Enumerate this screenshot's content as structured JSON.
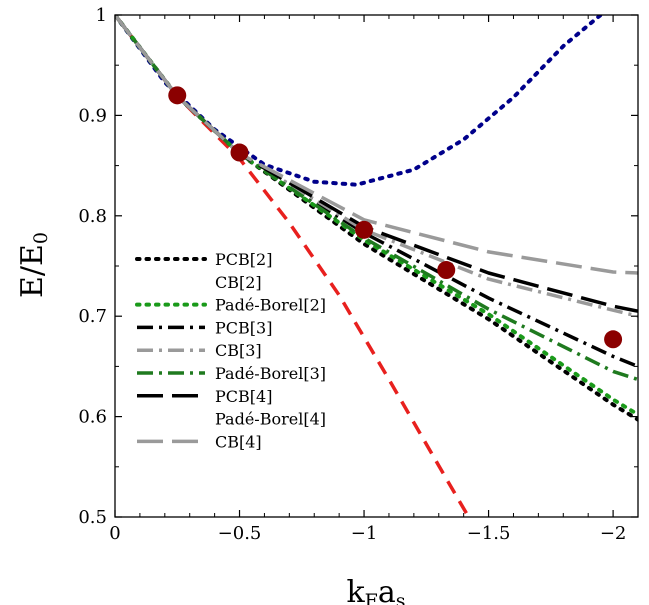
{
  "chart_data": {
    "type": "line",
    "xlabel_main": "k",
    "xlabel_sub1": "F",
    "xlabel_mid": "a",
    "xlabel_sub2": "s",
    "ylabel_main": "E/E",
    "ylabel_sub": "0",
    "xlim": [
      0,
      -2.1
    ],
    "ylim": [
      0.5,
      1.0
    ],
    "x_ticks": [
      0,
      -0.5,
      -1,
      -1.5,
      -2
    ],
    "x_tick_labels": [
      "0",
      "−0.5",
      "−1",
      "−1.5",
      "−2"
    ],
    "y_ticks": [
      0.5,
      0.6,
      0.7,
      0.8,
      0.9,
      1.0
    ],
    "y_tick_labels": [
      "0.5",
      "0.6",
      "0.7",
      "0.8",
      "0.9",
      "1"
    ],
    "legend_position": "lower-left",
    "series": [
      {
        "name": "",
        "color": "#00008b",
        "dash": "dotted",
        "legend": false,
        "x": [
          0,
          -0.2,
          -0.4,
          -0.6,
          -0.8,
          -0.97,
          -1.2,
          -1.4,
          -1.6,
          -1.8,
          -1.95
        ],
        "y": [
          1.0,
          0.933,
          0.886,
          0.851,
          0.834,
          0.831,
          0.846,
          0.876,
          0.918,
          0.969,
          1.0
        ]
      },
      {
        "name": "",
        "color": "#e8201e",
        "dash": "dashed",
        "legend": false,
        "x": [
          0,
          -0.25,
          -0.5,
          -0.7,
          -0.9,
          -1.1,
          -1.3,
          -1.42
        ],
        "y": [
          1.0,
          0.919,
          0.857,
          0.793,
          0.721,
          0.637,
          0.551,
          0.5
        ]
      },
      {
        "name": "PCB[2]",
        "color": "#000000",
        "dash": "dotted",
        "legend": true,
        "x": [
          0,
          -0.25,
          -0.5,
          -1,
          -1.5,
          -2,
          -2.1
        ],
        "y": [
          1.0,
          0.919,
          0.862,
          0.772,
          0.697,
          0.612,
          0.597
        ]
      },
      {
        "name": "CB[2]",
        "color": "#ff3b30",
        "dash": "none",
        "legend": true,
        "x": [],
        "y": []
      },
      {
        "name": "Padé-Borel[2]",
        "color": "#1a9a1a",
        "dash": "dotted",
        "legend": true,
        "x": [
          0,
          -0.25,
          -0.5,
          -1,
          -1.5,
          -2,
          -2.1
        ],
        "y": [
          1.0,
          0.919,
          0.862,
          0.776,
          0.702,
          0.617,
          0.602
        ]
      },
      {
        "name": "PCB[3]",
        "color": "#000000",
        "dash": "dashdot",
        "legend": true,
        "x": [
          0,
          -0.25,
          -0.5,
          -1,
          -1.5,
          -2,
          -2.1
        ],
        "y": [
          1.0,
          0.919,
          0.862,
          0.783,
          0.718,
          0.66,
          0.65
        ]
      },
      {
        "name": "CB[3]",
        "color": "#9a9a9a",
        "dash": "dashdot",
        "legend": true,
        "x": [
          0,
          -0.25,
          -0.5,
          -1,
          -1.5,
          -2,
          -2.1
        ],
        "y": [
          1.0,
          0.919,
          0.862,
          0.786,
          0.737,
          0.706,
          0.7
        ]
      },
      {
        "name": "Padé-Borel[3]",
        "color": "#1f7a1f",
        "dash": "dashdot",
        "legend": true,
        "x": [
          0,
          -0.25,
          -0.5,
          -1,
          -1.5,
          -2,
          -2.1
        ],
        "y": [
          1.0,
          0.919,
          0.862,
          0.778,
          0.707,
          0.645,
          0.637
        ]
      },
      {
        "name": "PCB[4]",
        "color": "#000000",
        "dash": "longdash",
        "legend": true,
        "x": [
          0,
          -0.25,
          -0.5,
          -1,
          -1.5,
          -2,
          -2.1
        ],
        "y": [
          1.0,
          0.919,
          0.862,
          0.789,
          0.743,
          0.71,
          0.705
        ]
      },
      {
        "name": "Padé-Borel[4]",
        "color": "#1a9a1a",
        "dash": "none",
        "legend": true,
        "x": [],
        "y": []
      },
      {
        "name": "CB[4]",
        "color": "#9a9a9a",
        "dash": "longdash",
        "legend": true,
        "x": [
          0,
          -0.25,
          -0.5,
          -1,
          -1.5,
          -2,
          -2.1
        ],
        "y": [
          1.0,
          0.919,
          0.862,
          0.796,
          0.764,
          0.744,
          0.743
        ]
      }
    ],
    "markers": {
      "color": "#8b0000",
      "x": [
        -0.25,
        -0.5,
        -1.0,
        -1.33,
        -2.0
      ],
      "y": [
        0.92,
        0.863,
        0.786,
        0.746,
        0.677
      ]
    }
  }
}
